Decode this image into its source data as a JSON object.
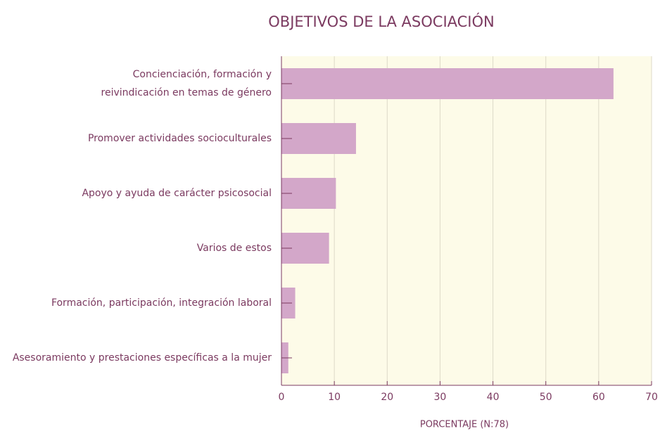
{
  "chart_data": {
    "type": "bar",
    "orientation": "horizontal",
    "title": "OBJETIVOS DE LA ASOCIACIÓN",
    "xlabel": "PORCENTAJE (N:78)",
    "categories": [
      "Concienciación, formación y\nreivindicación en temas de género",
      "Promover actividades socioculturales",
      "Apoyo y ayuda de carácter psicosocial",
      "Varios de estos",
      "Formación, participación, integración laboral",
      "Asesoramiento y prestaciones específicas a la mujer"
    ],
    "values": [
      62.8,
      14.1,
      10.3,
      9.0,
      2.6,
      1.3
    ],
    "color": "#d3a7c9",
    "xlim": [
      0,
      70
    ],
    "xticks": [
      0,
      10,
      20,
      30,
      40,
      50,
      60,
      70
    ],
    "grid": true
  }
}
